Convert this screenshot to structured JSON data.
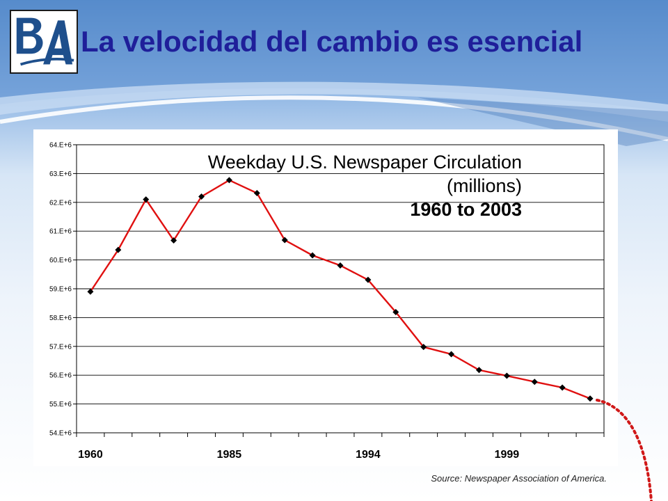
{
  "slide": {
    "title": "La velocidad del cambio es esencial",
    "logo_text": "BA",
    "source": "Source: Newspaper Association of America."
  },
  "colors": {
    "title": "#1f1f9a",
    "line": "#e01010",
    "marker": "#000000",
    "logo_blue": "#1e4f8c",
    "dotted_accent": "#d01818"
  },
  "chart_data": {
    "type": "line",
    "title_lines": [
      "Weekday U.S. Newspaper Circulation",
      "(millions)",
      "1960 to 2003"
    ],
    "xlabel": "",
    "ylabel": "",
    "ylim": [
      54000000,
      64000000
    ],
    "y_ticks": [
      54000000,
      55000000,
      56000000,
      57000000,
      58000000,
      59000000,
      60000000,
      61000000,
      62000000,
      63000000,
      64000000
    ],
    "y_tick_labels": [
      "54.E+6",
      "55.E+6",
      "56.E+6",
      "57.E+6",
      "58.E+6",
      "59.E+6",
      "60.E+6",
      "61.E+6",
      "62.E+6",
      "63.E+6",
      "64.E+6"
    ],
    "x_tick_labels": [
      {
        "label": "1960",
        "index": 0
      },
      {
        "label": "1985",
        "index": 5
      },
      {
        "label": "1994",
        "index": 10
      },
      {
        "label": "1999",
        "index": 15
      }
    ],
    "grid": true,
    "series": [
      {
        "values": [
          58900000,
          60350000,
          62100000,
          60680000,
          62200000,
          62770000,
          62320000,
          60690000,
          60160000,
          59810000,
          59310000,
          58190000,
          56980000,
          56730000,
          56180000,
          55980000,
          55770000,
          55570000,
          55190000
        ]
      }
    ]
  }
}
